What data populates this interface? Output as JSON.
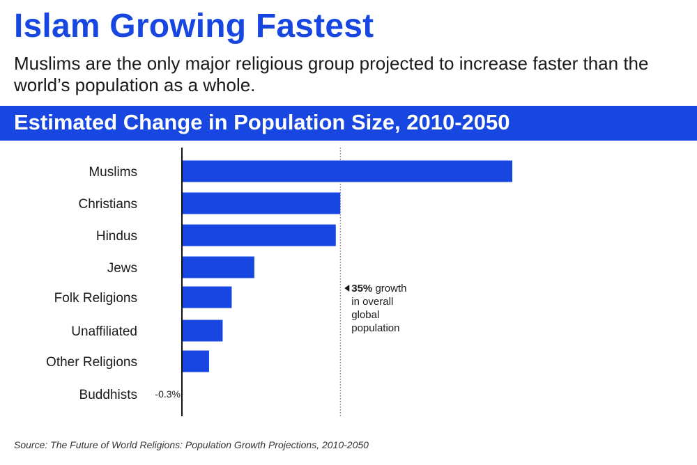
{
  "header": {
    "title": "Islam Growing Fastest",
    "subtitle": "Muslims are the only major religious group projected to increase faster than the world’s population as a whole."
  },
  "banner": {
    "text": "Estimated Change in Population Size, 2010-2050"
  },
  "colors": {
    "accent": "#1747e0",
    "text": "#1a1a1a"
  },
  "chart_data": {
    "type": "bar",
    "orientation": "horizontal",
    "title": "Estimated Change in Population Size, 2010-2050",
    "unit": "%",
    "categories": [
      "Muslims",
      "Christians",
      "Hindus",
      "Jews",
      "Folk Religions",
      "Unaffiliated",
      "Other Religions",
      "Buddhists"
    ],
    "values": [
      73,
      35,
      34,
      16,
      11,
      9,
      6,
      -0.3
    ],
    "value_labels": [
      "",
      "",
      "",
      "",
      "",
      "",
      "",
      "-0.3%"
    ],
    "xlim": [
      0,
      73
    ],
    "reference_line": {
      "value": 35,
      "bold": "35%",
      "text_lines": [
        "growth",
        "in overall",
        "global",
        "population"
      ]
    },
    "grid": false
  },
  "footer": {
    "source": "Source: The Future of World Religions: Population Growth Projections, 2010-2050"
  }
}
